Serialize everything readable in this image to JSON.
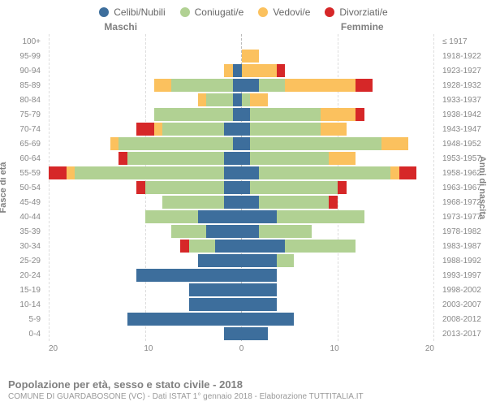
{
  "legend": [
    {
      "label": "Celibi/Nubili",
      "color": "#3d6e9c"
    },
    {
      "label": "Coniugati/e",
      "color": "#b1d193"
    },
    {
      "label": "Vedovi/e",
      "color": "#fbc15e"
    },
    {
      "label": "Divorziati/e",
      "color": "#d62728"
    }
  ],
  "header": {
    "male": "Maschi",
    "female": "Femmine"
  },
  "axes": {
    "left_title": "Fasce di età",
    "right_title": "Anni di nascita",
    "x_ticks": [
      "20",
      "10",
      "0",
      "10",
      "20"
    ],
    "x_max": 22
  },
  "footer": {
    "title": "Popolazione per età, sesso e stato civile - 2018",
    "sub": "COMUNE DI GUARDABOSONE (VC) - Dati ISTAT 1° gennaio 2018 - Elaborazione TUTTITALIA.IT"
  },
  "rows": [
    {
      "age": "100+",
      "birth": "≤ 1917",
      "m": {
        "c": 0,
        "k": 0,
        "v": 0,
        "d": 0
      },
      "f": {
        "c": 0,
        "k": 0,
        "v": 0,
        "d": 0
      }
    },
    {
      "age": "95-99",
      "birth": "1918-1922",
      "m": {
        "c": 0,
        "k": 0,
        "v": 0,
        "d": 0
      },
      "f": {
        "c": 0,
        "k": 0,
        "v": 2,
        "d": 0
      }
    },
    {
      "age": "90-94",
      "birth": "1923-1927",
      "m": {
        "c": 1,
        "k": 0,
        "v": 1,
        "d": 0
      },
      "f": {
        "c": 0,
        "k": 0,
        "v": 4,
        "d": 1
      }
    },
    {
      "age": "85-89",
      "birth": "1928-1932",
      "m": {
        "c": 1,
        "k": 7,
        "v": 2,
        "d": 0
      },
      "f": {
        "c": 2,
        "k": 3,
        "v": 8,
        "d": 2
      }
    },
    {
      "age": "80-84",
      "birth": "1933-1937",
      "m": {
        "c": 1,
        "k": 3,
        "v": 1,
        "d": 0
      },
      "f": {
        "c": 0,
        "k": 1,
        "v": 2,
        "d": 0
      }
    },
    {
      "age": "75-79",
      "birth": "1938-1942",
      "m": {
        "c": 1,
        "k": 9,
        "v": 0,
        "d": 0
      },
      "f": {
        "c": 1,
        "k": 8,
        "v": 4,
        "d": 1
      }
    },
    {
      "age": "70-74",
      "birth": "1943-1947",
      "m": {
        "c": 2,
        "k": 7,
        "v": 1,
        "d": 2
      },
      "f": {
        "c": 1,
        "k": 8,
        "v": 3,
        "d": 0
      }
    },
    {
      "age": "65-69",
      "birth": "1948-1952",
      "m": {
        "c": 1,
        "k": 13,
        "v": 1,
        "d": 0
      },
      "f": {
        "c": 1,
        "k": 15,
        "v": 3,
        "d": 0
      }
    },
    {
      "age": "60-64",
      "birth": "1953-1957",
      "m": {
        "c": 2,
        "k": 11,
        "v": 0,
        "d": 1
      },
      "f": {
        "c": 1,
        "k": 9,
        "v": 3,
        "d": 0
      }
    },
    {
      "age": "55-59",
      "birth": "1958-1962",
      "m": {
        "c": 2,
        "k": 17,
        "v": 1,
        "d": 2
      },
      "f": {
        "c": 2,
        "k": 15,
        "v": 1,
        "d": 2
      }
    },
    {
      "age": "50-54",
      "birth": "1963-1967",
      "m": {
        "c": 2,
        "k": 9,
        "v": 0,
        "d": 1
      },
      "f": {
        "c": 1,
        "k": 10,
        "v": 0,
        "d": 1
      }
    },
    {
      "age": "45-49",
      "birth": "1968-1972",
      "m": {
        "c": 2,
        "k": 7,
        "v": 0,
        "d": 0
      },
      "f": {
        "c": 2,
        "k": 8,
        "v": 0,
        "d": 1
      }
    },
    {
      "age": "40-44",
      "birth": "1973-1977",
      "m": {
        "c": 5,
        "k": 6,
        "v": 0,
        "d": 0
      },
      "f": {
        "c": 4,
        "k": 10,
        "v": 0,
        "d": 0
      }
    },
    {
      "age": "35-39",
      "birth": "1978-1982",
      "m": {
        "c": 4,
        "k": 4,
        "v": 0,
        "d": 0
      },
      "f": {
        "c": 2,
        "k": 6,
        "v": 0,
        "d": 0
      }
    },
    {
      "age": "30-34",
      "birth": "1983-1987",
      "m": {
        "c": 3,
        "k": 3,
        "v": 0,
        "d": 1
      },
      "f": {
        "c": 5,
        "k": 8,
        "v": 0,
        "d": 0
      }
    },
    {
      "age": "25-29",
      "birth": "1988-1992",
      "m": {
        "c": 5,
        "k": 0,
        "v": 0,
        "d": 0
      },
      "f": {
        "c": 4,
        "k": 2,
        "v": 0,
        "d": 0
      }
    },
    {
      "age": "20-24",
      "birth": "1993-1997",
      "m": {
        "c": 12,
        "k": 0,
        "v": 0,
        "d": 0
      },
      "f": {
        "c": 4,
        "k": 0,
        "v": 0,
        "d": 0
      }
    },
    {
      "age": "15-19",
      "birth": "1998-2002",
      "m": {
        "c": 6,
        "k": 0,
        "v": 0,
        "d": 0
      },
      "f": {
        "c": 4,
        "k": 0,
        "v": 0,
        "d": 0
      }
    },
    {
      "age": "10-14",
      "birth": "2003-2007",
      "m": {
        "c": 6,
        "k": 0,
        "v": 0,
        "d": 0
      },
      "f": {
        "c": 4,
        "k": 0,
        "v": 0,
        "d": 0
      }
    },
    {
      "age": "5-9",
      "birth": "2008-2012",
      "m": {
        "c": 13,
        "k": 0,
        "v": 0,
        "d": 0
      },
      "f": {
        "c": 6,
        "k": 0,
        "v": 0,
        "d": 0
      }
    },
    {
      "age": "0-4",
      "birth": "2013-2017",
      "m": {
        "c": 2,
        "k": 0,
        "v": 0,
        "d": 0
      },
      "f": {
        "c": 3,
        "k": 0,
        "v": 0,
        "d": 0
      }
    }
  ]
}
